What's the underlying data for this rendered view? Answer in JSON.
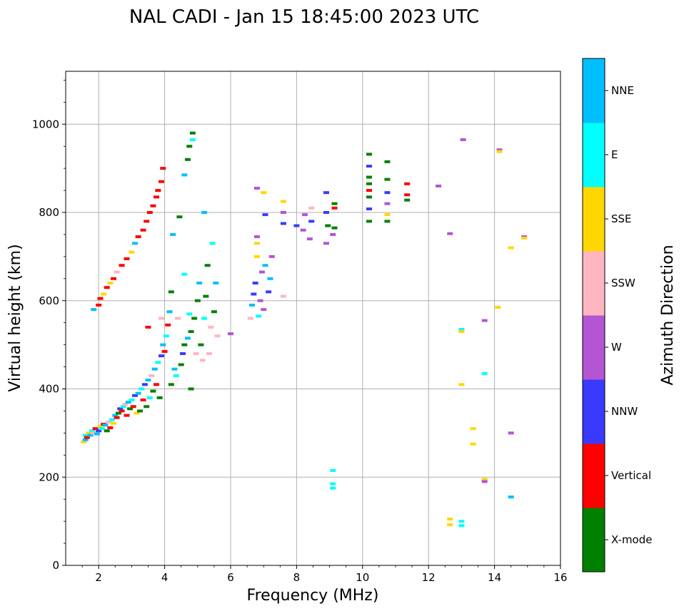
{
  "chart_data": {
    "type": "scatter",
    "title": "NAL CADI - Jan 15 18:45:00 2023 UTC",
    "xlabel": "Frequency (MHz)",
    "ylabel": "Virtual height (km)",
    "xlim": [
      1,
      16
    ],
    "ylim": [
      0,
      1120
    ],
    "xticks": [
      2,
      4,
      6,
      8,
      10,
      12,
      14,
      16
    ],
    "yticks": [
      0,
      200,
      400,
      600,
      800,
      1000
    ],
    "grid": true,
    "colorbar": {
      "title": "Azimuth Direction",
      "categories": [
        {
          "name": "X-mode",
          "color": "#008000"
        },
        {
          "name": "Vertical",
          "color": "#ff0000"
        },
        {
          "name": "NNW",
          "color": "#3a3aff"
        },
        {
          "name": "W",
          "color": "#b455d4"
        },
        {
          "name": "SSW",
          "color": "#ffb6c1"
        },
        {
          "name": "SSE",
          "color": "#ffd700"
        },
        {
          "name": "E",
          "color": "#00ffff"
        },
        {
          "name": "NNE",
          "color": "#00bfff"
        }
      ]
    },
    "points": [
      {
        "f": 1.55,
        "h": 280,
        "c": "SSE"
      },
      {
        "f": 1.6,
        "h": 285,
        "c": "NNE"
      },
      {
        "f": 1.6,
        "h": 295,
        "c": "E"
      },
      {
        "f": 1.65,
        "h": 290,
        "c": "Vertical"
      },
      {
        "f": 1.7,
        "h": 300,
        "c": "SSE"
      },
      {
        "f": 1.75,
        "h": 295,
        "c": "NNE"
      },
      {
        "f": 1.8,
        "h": 305,
        "c": "E"
      },
      {
        "f": 1.85,
        "h": 300,
        "c": "SSW"
      },
      {
        "f": 1.9,
        "h": 310,
        "c": "Vertical"
      },
      {
        "f": 1.95,
        "h": 298,
        "c": "NNE"
      },
      {
        "f": 2.0,
        "h": 305,
        "c": "NNW"
      },
      {
        "f": 2.05,
        "h": 315,
        "c": "SSE"
      },
      {
        "f": 2.1,
        "h": 310,
        "c": "E"
      },
      {
        "f": 2.15,
        "h": 320,
        "c": "Vertical"
      },
      {
        "f": 2.2,
        "h": 318,
        "c": "NNE"
      },
      {
        "f": 2.25,
        "h": 305,
        "c": "X-mode"
      },
      {
        "f": 2.3,
        "h": 325,
        "c": "SSW"
      },
      {
        "f": 2.35,
        "h": 312,
        "c": "Vertical"
      },
      {
        "f": 2.4,
        "h": 330,
        "c": "E"
      },
      {
        "f": 2.45,
        "h": 322,
        "c": "SSE"
      },
      {
        "f": 2.5,
        "h": 340,
        "c": "NNE"
      },
      {
        "f": 2.55,
        "h": 335,
        "c": "Vertical"
      },
      {
        "f": 2.6,
        "h": 345,
        "c": "X-mode"
      },
      {
        "f": 2.65,
        "h": 355,
        "c": "NNW"
      },
      {
        "f": 2.7,
        "h": 350,
        "c": "Vertical"
      },
      {
        "f": 2.75,
        "h": 360,
        "c": "E"
      },
      {
        "f": 2.8,
        "h": 365,
        "c": "SSW"
      },
      {
        "f": 2.85,
        "h": 340,
        "c": "Vertical"
      },
      {
        "f": 2.9,
        "h": 370,
        "c": "NNE"
      },
      {
        "f": 2.95,
        "h": 355,
        "c": "X-mode"
      },
      {
        "f": 3.0,
        "h": 375,
        "c": "E"
      },
      {
        "f": 3.05,
        "h": 360,
        "c": "Vertical"
      },
      {
        "f": 3.1,
        "h": 385,
        "c": "NNW"
      },
      {
        "f": 3.15,
        "h": 345,
        "c": "SSE"
      },
      {
        "f": 3.2,
        "h": 390,
        "c": "NNE"
      },
      {
        "f": 3.25,
        "h": 350,
        "c": "X-mode"
      },
      {
        "f": 3.3,
        "h": 400,
        "c": "E"
      },
      {
        "f": 3.35,
        "h": 375,
        "c": "Vertical"
      },
      {
        "f": 3.4,
        "h": 410,
        "c": "NNW"
      },
      {
        "f": 3.45,
        "h": 360,
        "c": "X-mode"
      },
      {
        "f": 3.5,
        "h": 420,
        "c": "NNE"
      },
      {
        "f": 3.55,
        "h": 380,
        "c": "E"
      },
      {
        "f": 3.6,
        "h": 430,
        "c": "SSW"
      },
      {
        "f": 3.65,
        "h": 395,
        "c": "X-mode"
      },
      {
        "f": 3.7,
        "h": 445,
        "c": "NNE"
      },
      {
        "f": 3.75,
        "h": 410,
        "c": "Vertical"
      },
      {
        "f": 3.8,
        "h": 460,
        "c": "E"
      },
      {
        "f": 3.85,
        "h": 380,
        "c": "X-mode"
      },
      {
        "f": 3.9,
        "h": 475,
        "c": "NNW"
      },
      {
        "f": 3.95,
        "h": 500,
        "c": "NNE"
      },
      {
        "f": 4.0,
        "h": 485,
        "c": "Vertical"
      },
      {
        "f": 4.05,
        "h": 520,
        "c": "E"
      },
      {
        "f": 4.1,
        "h": 545,
        "c": "Vertical"
      },
      {
        "f": 4.15,
        "h": 575,
        "c": "NNE"
      },
      {
        "f": 4.2,
        "h": 410,
        "c": "X-mode"
      },
      {
        "f": 4.3,
        "h": 445,
        "c": "NNE"
      },
      {
        "f": 4.35,
        "h": 430,
        "c": "E"
      },
      {
        "f": 4.4,
        "h": 560,
        "c": "SSW"
      },
      {
        "f": 4.5,
        "h": 455,
        "c": "X-mode"
      },
      {
        "f": 4.55,
        "h": 480,
        "c": "NNW"
      },
      {
        "f": 4.6,
        "h": 500,
        "c": "X-mode"
      },
      {
        "f": 4.7,
        "h": 515,
        "c": "NNE"
      },
      {
        "f": 4.75,
        "h": 570,
        "c": "E"
      },
      {
        "f": 4.8,
        "h": 530,
        "c": "X-mode"
      },
      {
        "f": 4.9,
        "h": 560,
        "c": "X-mode"
      },
      {
        "f": 4.95,
        "h": 480,
        "c": "SSW"
      },
      {
        "f": 5.0,
        "h": 600,
        "c": "X-mode"
      },
      {
        "f": 5.05,
        "h": 640,
        "c": "NNE"
      },
      {
        "f": 5.1,
        "h": 500,
        "c": "X-mode"
      },
      {
        "f": 5.15,
        "h": 465,
        "c": "SSW"
      },
      {
        "f": 5.2,
        "h": 560,
        "c": "E"
      },
      {
        "f": 5.25,
        "h": 610,
        "c": "X-mode"
      },
      {
        "f": 5.3,
        "h": 680,
        "c": "X-mode"
      },
      {
        "f": 5.35,
        "h": 480,
        "c": "SSW"
      },
      {
        "f": 5.4,
        "h": 540,
        "c": "SSW"
      },
      {
        "f": 5.45,
        "h": 730,
        "c": "E"
      },
      {
        "f": 5.2,
        "h": 800,
        "c": "NNE"
      },
      {
        "f": 5.5,
        "h": 575,
        "c": "X-mode"
      },
      {
        "f": 5.55,
        "h": 640,
        "c": "NNE"
      },
      {
        "f": 5.6,
        "h": 520,
        "c": "SSW"
      },
      {
        "f": 4.2,
        "h": 620,
        "c": "X-mode"
      },
      {
        "f": 4.8,
        "h": 400,
        "c": "X-mode"
      },
      {
        "f": 4.6,
        "h": 660,
        "c": "E"
      },
      {
        "f": 3.5,
        "h": 540,
        "c": "Vertical"
      },
      {
        "f": 3.9,
        "h": 560,
        "c": "SSW"
      },
      {
        "f": 4.25,
        "h": 750,
        "c": "NNE"
      },
      {
        "f": 4.45,
        "h": 790,
        "c": "X-mode"
      },
      {
        "f": 4.6,
        "h": 885,
        "c": "NNE"
      },
      {
        "f": 4.7,
        "h": 920,
        "c": "X-mode"
      },
      {
        "f": 4.75,
        "h": 950,
        "c": "X-mode"
      },
      {
        "f": 4.85,
        "h": 980,
        "c": "X-mode"
      },
      {
        "f": 4.85,
        "h": 965,
        "c": "E"
      },
      {
        "f": 2.0,
        "h": 590,
        "c": "Vertical"
      },
      {
        "f": 2.05,
        "h": 605,
        "c": "Vertical"
      },
      {
        "f": 2.15,
        "h": 615,
        "c": "SSE"
      },
      {
        "f": 2.25,
        "h": 630,
        "c": "Vertical"
      },
      {
        "f": 2.35,
        "h": 640,
        "c": "SSE"
      },
      {
        "f": 2.45,
        "h": 650,
        "c": "Vertical"
      },
      {
        "f": 2.55,
        "h": 665,
        "c": "SSW"
      },
      {
        "f": 2.7,
        "h": 680,
        "c": "Vertical"
      },
      {
        "f": 2.85,
        "h": 695,
        "c": "Vertical"
      },
      {
        "f": 3.0,
        "h": 710,
        "c": "SSE"
      },
      {
        "f": 3.1,
        "h": 730,
        "c": "NNE"
      },
      {
        "f": 3.2,
        "h": 745,
        "c": "Vertical"
      },
      {
        "f": 3.35,
        "h": 760,
        "c": "Vertical"
      },
      {
        "f": 3.45,
        "h": 780,
        "c": "Vertical"
      },
      {
        "f": 3.55,
        "h": 800,
        "c": "Vertical"
      },
      {
        "f": 3.65,
        "h": 815,
        "c": "Vertical"
      },
      {
        "f": 3.75,
        "h": 835,
        "c": "Vertical"
      },
      {
        "f": 3.8,
        "h": 850,
        "c": "Vertical"
      },
      {
        "f": 3.9,
        "h": 870,
        "c": "Vertical"
      },
      {
        "f": 3.95,
        "h": 900,
        "c": "Vertical"
      },
      {
        "f": 1.85,
        "h": 580,
        "c": "NNE"
      },
      {
        "f": 6.0,
        "h": 525,
        "c": "W"
      },
      {
        "f": 6.6,
        "h": 560,
        "c": "SSW"
      },
      {
        "f": 6.65,
        "h": 590,
        "c": "NNE"
      },
      {
        "f": 6.7,
        "h": 615,
        "c": "NNW"
      },
      {
        "f": 6.75,
        "h": 640,
        "c": "NNW"
      },
      {
        "f": 6.8,
        "h": 700,
        "c": "SSE"
      },
      {
        "f": 6.8,
        "h": 730,
        "c": "SSE"
      },
      {
        "f": 6.85,
        "h": 565,
        "c": "E"
      },
      {
        "f": 6.9,
        "h": 600,
        "c": "W"
      },
      {
        "f": 6.95,
        "h": 665,
        "c": "W"
      },
      {
        "f": 6.8,
        "h": 745,
        "c": "W"
      },
      {
        "f": 6.8,
        "h": 855,
        "c": "W"
      },
      {
        "f": 7.0,
        "h": 845,
        "c": "SSE"
      },
      {
        "f": 7.0,
        "h": 580,
        "c": "W"
      },
      {
        "f": 7.05,
        "h": 680,
        "c": "NNE"
      },
      {
        "f": 7.15,
        "h": 620,
        "c": "NNW"
      },
      {
        "f": 7.2,
        "h": 650,
        "c": "NNE"
      },
      {
        "f": 7.25,
        "h": 700,
        "c": "W"
      },
      {
        "f": 7.05,
        "h": 795,
        "c": "NNW"
      },
      {
        "f": 7.6,
        "h": 610,
        "c": "SSW"
      },
      {
        "f": 7.6,
        "h": 775,
        "c": "NNW"
      },
      {
        "f": 7.6,
        "h": 800,
        "c": "W"
      },
      {
        "f": 7.6,
        "h": 825,
        "c": "SSE"
      },
      {
        "f": 8.0,
        "h": 770,
        "c": "NNW"
      },
      {
        "f": 8.2,
        "h": 760,
        "c": "W"
      },
      {
        "f": 8.25,
        "h": 795,
        "c": "W"
      },
      {
        "f": 8.4,
        "h": 740,
        "c": "W"
      },
      {
        "f": 8.45,
        "h": 780,
        "c": "NNW"
      },
      {
        "f": 8.45,
        "h": 810,
        "c": "SSW"
      },
      {
        "f": 8.9,
        "h": 730,
        "c": "W"
      },
      {
        "f": 8.9,
        "h": 800,
        "c": "NNW"
      },
      {
        "f": 8.9,
        "h": 845,
        "c": "NNW"
      },
      {
        "f": 8.95,
        "h": 770,
        "c": "X-mode"
      },
      {
        "f": 9.1,
        "h": 750,
        "c": "W"
      },
      {
        "f": 9.15,
        "h": 765,
        "c": "X-mode"
      },
      {
        "f": 9.15,
        "h": 810,
        "c": "Vertical"
      },
      {
        "f": 9.15,
        "h": 820,
        "c": "X-mode"
      },
      {
        "f": 9.1,
        "h": 215,
        "c": "E"
      },
      {
        "f": 9.1,
        "h": 185,
        "c": "E"
      },
      {
        "f": 9.1,
        "h": 175,
        "c": "E"
      },
      {
        "f": 10.2,
        "h": 780,
        "c": "X-mode"
      },
      {
        "f": 10.2,
        "h": 808,
        "c": "NNW"
      },
      {
        "f": 10.2,
        "h": 835,
        "c": "X-mode"
      },
      {
        "f": 10.2,
        "h": 850,
        "c": "Vertical"
      },
      {
        "f": 10.2,
        "h": 865,
        "c": "X-mode"
      },
      {
        "f": 10.2,
        "h": 880,
        "c": "X-mode"
      },
      {
        "f": 10.2,
        "h": 905,
        "c": "NNW"
      },
      {
        "f": 10.2,
        "h": 932,
        "c": "X-mode"
      },
      {
        "f": 10.75,
        "h": 780,
        "c": "X-mode"
      },
      {
        "f": 10.75,
        "h": 795,
        "c": "SSE"
      },
      {
        "f": 10.75,
        "h": 820,
        "c": "W"
      },
      {
        "f": 10.75,
        "h": 845,
        "c": "NNW"
      },
      {
        "f": 10.75,
        "h": 875,
        "c": "X-mode"
      },
      {
        "f": 10.75,
        "h": 915,
        "c": "X-mode"
      },
      {
        "f": 11.35,
        "h": 828,
        "c": "X-mode"
      },
      {
        "f": 11.35,
        "h": 840,
        "c": "Vertical"
      },
      {
        "f": 11.35,
        "h": 865,
        "c": "Vertical"
      },
      {
        "f": 12.3,
        "h": 860,
        "c": "W"
      },
      {
        "f": 12.65,
        "h": 752,
        "c": "W"
      },
      {
        "f": 12.65,
        "h": 105,
        "c": "SSE"
      },
      {
        "f": 12.65,
        "h": 92,
        "c": "SSE"
      },
      {
        "f": 13.0,
        "h": 100,
        "c": "E"
      },
      {
        "f": 13.0,
        "h": 90,
        "c": "E"
      },
      {
        "f": 13.0,
        "h": 410,
        "c": "SSE"
      },
      {
        "f": 13.0,
        "h": 535,
        "c": "E"
      },
      {
        "f": 13.0,
        "h": 530,
        "c": "SSE"
      },
      {
        "f": 13.05,
        "h": 965,
        "c": "W"
      },
      {
        "f": 13.35,
        "h": 310,
        "c": "SSE"
      },
      {
        "f": 13.35,
        "h": 275,
        "c": "SSE"
      },
      {
        "f": 13.7,
        "h": 435,
        "c": "E"
      },
      {
        "f": 13.7,
        "h": 555,
        "c": "W"
      },
      {
        "f": 13.7,
        "h": 195,
        "c": "SSE"
      },
      {
        "f": 13.7,
        "h": 190,
        "c": "W"
      },
      {
        "f": 14.1,
        "h": 585,
        "c": "SSE"
      },
      {
        "f": 14.15,
        "h": 942,
        "c": "W"
      },
      {
        "f": 14.15,
        "h": 938,
        "c": "SSE"
      },
      {
        "f": 14.5,
        "h": 720,
        "c": "SSE"
      },
      {
        "f": 14.5,
        "h": 300,
        "c": "W"
      },
      {
        "f": 14.5,
        "h": 155,
        "c": "NNE"
      },
      {
        "f": 14.9,
        "h": 745,
        "c": "W"
      },
      {
        "f": 14.9,
        "h": 742,
        "c": "SSE"
      }
    ]
  }
}
